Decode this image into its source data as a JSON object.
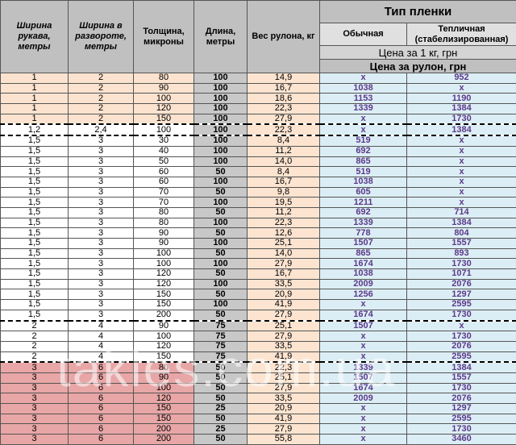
{
  "headers": {
    "sleeve_width": "Ширина рукава, метры",
    "unfolded_width": "Ширина в развороте, метры",
    "thickness": "Толщина, микроны",
    "length": "Длина, метры",
    "roll_weight": "Вес рулона, кг",
    "film_type": "Тип пленки",
    "regular": "Обычная",
    "greenhouse": "Тепличная (стабелизированная)",
    "price_per_kg_label": "Цена за 1 кг, грн",
    "price_per_kg_value": "",
    "price_per_roll": "Цена за рулон, грн"
  },
  "watermark": "takles.com.ua",
  "colors": {
    "header_gray": "#c0c0c0",
    "length_gray": "#c8c8c8",
    "weight_peach": "#fce4d0",
    "price_blue": "#dceef5",
    "price_text": "#5b3a8a",
    "row_peach": "#fbe3cf",
    "row_pink": "#e8a6a6"
  },
  "rows": [
    {
      "sleeve": "1",
      "unfolded": "2",
      "thickness": "80",
      "length": "100",
      "weight": "14,9",
      "regular": "x",
      "greenhouse": "952",
      "tint": "peach",
      "sep": false
    },
    {
      "sleeve": "1",
      "unfolded": "2",
      "thickness": "90",
      "length": "100",
      "weight": "16,7",
      "regular": "1038",
      "greenhouse": "x",
      "tint": "peach",
      "sep": false
    },
    {
      "sleeve": "1",
      "unfolded": "2",
      "thickness": "100",
      "length": "100",
      "weight": "18,6",
      "regular": "1153",
      "greenhouse": "1190",
      "tint": "peach",
      "sep": false
    },
    {
      "sleeve": "1",
      "unfolded": "2",
      "thickness": "120",
      "length": "100",
      "weight": "22,3",
      "regular": "1339",
      "greenhouse": "1384",
      "tint": "peach",
      "sep": false
    },
    {
      "sleeve": "1",
      "unfolded": "2",
      "thickness": "150",
      "length": "100",
      "weight": "27,9",
      "regular": "x",
      "greenhouse": "1730",
      "tint": "peach",
      "sep": true
    },
    {
      "sleeve": "1,2",
      "unfolded": "2,4",
      "thickness": "100",
      "length": "100",
      "weight": "22,3",
      "regular": "x",
      "greenhouse": "1384",
      "tint": "white",
      "sep": true
    },
    {
      "sleeve": "1,5",
      "unfolded": "3",
      "thickness": "30",
      "length": "100",
      "weight": "8,4",
      "regular": "519",
      "greenhouse": "x",
      "tint": "white",
      "sep": false
    },
    {
      "sleeve": "1,5",
      "unfolded": "3",
      "thickness": "40",
      "length": "100",
      "weight": "11,2",
      "regular": "692",
      "greenhouse": "x",
      "tint": "white",
      "sep": false
    },
    {
      "sleeve": "1,5",
      "unfolded": "3",
      "thickness": "50",
      "length": "100",
      "weight": "14,0",
      "regular": "865",
      "greenhouse": "x",
      "tint": "white",
      "sep": false
    },
    {
      "sleeve": "1,5",
      "unfolded": "3",
      "thickness": "60",
      "length": "50",
      "weight": "8,4",
      "regular": "519",
      "greenhouse": "x",
      "tint": "white",
      "sep": false
    },
    {
      "sleeve": "1,5",
      "unfolded": "3",
      "thickness": "60",
      "length": "100",
      "weight": "16,7",
      "regular": "1038",
      "greenhouse": "x",
      "tint": "white",
      "sep": false
    },
    {
      "sleeve": "1,5",
      "unfolded": "3",
      "thickness": "70",
      "length": "50",
      "weight": "9,8",
      "regular": "605",
      "greenhouse": "x",
      "tint": "white",
      "sep": false
    },
    {
      "sleeve": "1,5",
      "unfolded": "3",
      "thickness": "70",
      "length": "100",
      "weight": "19,5",
      "regular": "1211",
      "greenhouse": "x",
      "tint": "white",
      "sep": false
    },
    {
      "sleeve": "1,5",
      "unfolded": "3",
      "thickness": "80",
      "length": "50",
      "weight": "11,2",
      "regular": "692",
      "greenhouse": "714",
      "tint": "white",
      "sep": false
    },
    {
      "sleeve": "1,5",
      "unfolded": "3",
      "thickness": "80",
      "length": "100",
      "weight": "22,3",
      "regular": "1339",
      "greenhouse": "1384",
      "tint": "white",
      "sep": false
    },
    {
      "sleeve": "1,5",
      "unfolded": "3",
      "thickness": "90",
      "length": "50",
      "weight": "12,6",
      "regular": "778",
      "greenhouse": "804",
      "tint": "white",
      "sep": false
    },
    {
      "sleeve": "1,5",
      "unfolded": "3",
      "thickness": "90",
      "length": "100",
      "weight": "25,1",
      "regular": "1507",
      "greenhouse": "1557",
      "tint": "white",
      "sep": false
    },
    {
      "sleeve": "1,5",
      "unfolded": "3",
      "thickness": "100",
      "length": "50",
      "weight": "14,0",
      "regular": "865",
      "greenhouse": "893",
      "tint": "white",
      "sep": false
    },
    {
      "sleeve": "1,5",
      "unfolded": "3",
      "thickness": "100",
      "length": "100",
      "weight": "27,9",
      "regular": "1674",
      "greenhouse": "1730",
      "tint": "white",
      "sep": false
    },
    {
      "sleeve": "1,5",
      "unfolded": "3",
      "thickness": "120",
      "length": "50",
      "weight": "16,7",
      "regular": "1038",
      "greenhouse": "1071",
      "tint": "white",
      "sep": false
    },
    {
      "sleeve": "1,5",
      "unfolded": "3",
      "thickness": "120",
      "length": "100",
      "weight": "33,5",
      "regular": "2009",
      "greenhouse": "2076",
      "tint": "white",
      "sep": false
    },
    {
      "sleeve": "1,5",
      "unfolded": "3",
      "thickness": "150",
      "length": "50",
      "weight": "20,9",
      "regular": "1256",
      "greenhouse": "1297",
      "tint": "white",
      "sep": false
    },
    {
      "sleeve": "1,5",
      "unfolded": "3",
      "thickness": "150",
      "length": "100",
      "weight": "41,9",
      "regular": "x",
      "greenhouse": "2595",
      "tint": "white",
      "sep": false
    },
    {
      "sleeve": "1,5",
      "unfolded": "3",
      "thickness": "200",
      "length": "50",
      "weight": "27,9",
      "regular": "1674",
      "greenhouse": "1730",
      "tint": "white",
      "sep": true
    },
    {
      "sleeve": "2",
      "unfolded": "4",
      "thickness": "90",
      "length": "75",
      "weight": "25,1",
      "regular": "1507",
      "greenhouse": "x",
      "tint": "white",
      "sep": false
    },
    {
      "sleeve": "2",
      "unfolded": "4",
      "thickness": "100",
      "length": "75",
      "weight": "27,9",
      "regular": "x",
      "greenhouse": "1730",
      "tint": "white",
      "sep": false
    },
    {
      "sleeve": "2",
      "unfolded": "4",
      "thickness": "120",
      "length": "75",
      "weight": "33,5",
      "regular": "x",
      "greenhouse": "2076",
      "tint": "white",
      "sep": false
    },
    {
      "sleeve": "2",
      "unfolded": "4",
      "thickness": "150",
      "length": "75",
      "weight": "41,9",
      "regular": "x",
      "greenhouse": "2595",
      "tint": "white",
      "sep": true
    },
    {
      "sleeve": "3",
      "unfolded": "6",
      "thickness": "80",
      "length": "50",
      "weight": "22,3",
      "regular": "1339",
      "greenhouse": "1384",
      "tint": "pink",
      "sep": false
    },
    {
      "sleeve": "3",
      "unfolded": "6",
      "thickness": "90",
      "length": "50",
      "weight": "25,1",
      "regular": "1507",
      "greenhouse": "1557",
      "tint": "pink",
      "sep": false
    },
    {
      "sleeve": "3",
      "unfolded": "6",
      "thickness": "100",
      "length": "50",
      "weight": "27,9",
      "regular": "1674",
      "greenhouse": "1730",
      "tint": "pink",
      "sep": false
    },
    {
      "sleeve": "3",
      "unfolded": "6",
      "thickness": "120",
      "length": "50",
      "weight": "33,5",
      "regular": "2009",
      "greenhouse": "2076",
      "tint": "pink",
      "sep": false
    },
    {
      "sleeve": "3",
      "unfolded": "6",
      "thickness": "150",
      "length": "25",
      "weight": "20,9",
      "regular": "x",
      "greenhouse": "1297",
      "tint": "pink",
      "sep": false
    },
    {
      "sleeve": "3",
      "unfolded": "6",
      "thickness": "150",
      "length": "50",
      "weight": "41,9",
      "regular": "x",
      "greenhouse": "2595",
      "tint": "pink",
      "sep": false
    },
    {
      "sleeve": "3",
      "unfolded": "6",
      "thickness": "200",
      "length": "25",
      "weight": "27,9",
      "regular": "x",
      "greenhouse": "1730",
      "tint": "pink",
      "sep": false
    },
    {
      "sleeve": "3",
      "unfolded": "6",
      "thickness": "200",
      "length": "50",
      "weight": "55,8",
      "regular": "x",
      "greenhouse": "3460",
      "tint": "pink",
      "sep": false
    }
  ]
}
